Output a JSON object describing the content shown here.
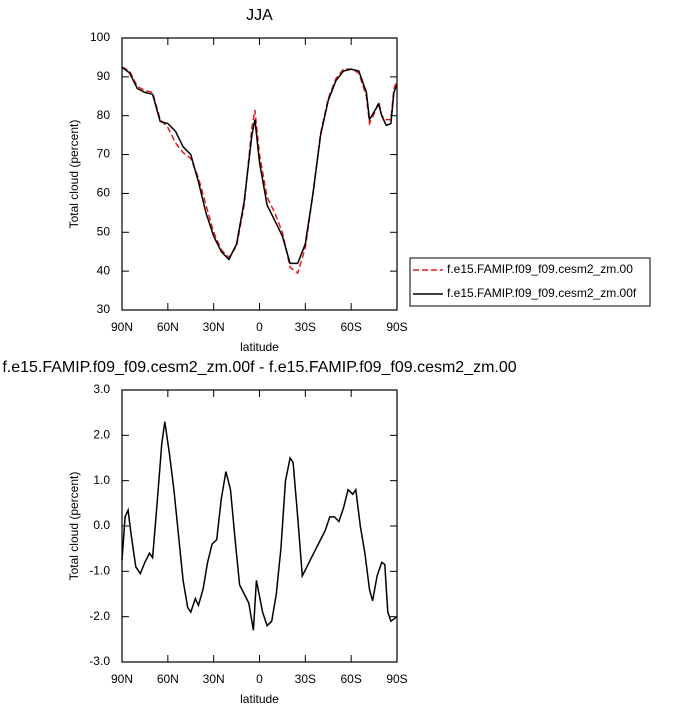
{
  "chart_data": [
    {
      "type": "line",
      "title": "JJA",
      "xlabel": "latitude",
      "ylabel": "Total cloud (percent)",
      "x": [
        90,
        85,
        80,
        75,
        70,
        65,
        60,
        55,
        50,
        45,
        40,
        35,
        30,
        25,
        20,
        15,
        10,
        5,
        3,
        0,
        -5,
        -10,
        -15,
        -20,
        -25,
        -30,
        -35,
        -40,
        -45,
        -50,
        -55,
        -60,
        -65,
        -70,
        -72,
        -75,
        -78,
        -80,
        -83,
        -86,
        -88,
        -90
      ],
      "xlim": [
        90,
        -90
      ],
      "xticks": [
        {
          "value": 90,
          "label": "90N"
        },
        {
          "value": 60,
          "label": "60N"
        },
        {
          "value": 30,
          "label": "30N"
        },
        0,
        {
          "value": -30,
          "label": "30S"
        },
        {
          "value": -60,
          "label": "60S"
        },
        {
          "value": -90,
          "label": "90S"
        }
      ],
      "ylim": [
        30,
        100
      ],
      "yticks": [
        30,
        40,
        50,
        60,
        70,
        80,
        90,
        100
      ],
      "legend": "right",
      "series": [
        {
          "name": "f.e15.FAMIP.f09_f09.cesm2_zm.00",
          "color": "#e41a1c",
          "dash": "dashed",
          "values": [
            92.5,
            91.5,
            87.5,
            86.5,
            86,
            79,
            77,
            73,
            70.5,
            69,
            64,
            57,
            50,
            45.5,
            43.5,
            46.5,
            57,
            77,
            81.5,
            70,
            59,
            55,
            50,
            41,
            39.5,
            46,
            60,
            75.5,
            84.5,
            89.5,
            92,
            92,
            91,
            85,
            78,
            80.5,
            83.5,
            80,
            79,
            79,
            87,
            89
          ]
        },
        {
          "name": "f.e15.FAMIP.f09_f09.cesm2_zm.00f",
          "color": "#000000",
          "dash": "solid",
          "values": [
            92.5,
            91,
            87,
            86,
            85.5,
            78.5,
            78,
            76,
            72,
            70,
            63,
            55,
            49,
            45,
            43,
            47,
            58,
            75,
            79,
            68,
            57,
            53,
            49,
            42,
            42,
            47,
            60,
            75,
            84,
            89,
            91.5,
            92,
            91.5,
            86,
            79,
            81,
            83,
            80,
            77.5,
            78,
            86,
            88
          ]
        }
      ]
    },
    {
      "type": "line",
      "title": "f.e15.FAMIP.f09_f09.cesm2_zm.00f - f.e15.FAMIP.f09_f09.cesm2_zm.00",
      "xlabel": "latitude",
      "ylabel": "Total cloud (percent)",
      "x": [
        90,
        88,
        86,
        84,
        81,
        78,
        75,
        72,
        70,
        67,
        64,
        62,
        59,
        56,
        53,
        50,
        47,
        45,
        42,
        40,
        37,
        34,
        31,
        28,
        25,
        22,
        19,
        16,
        13,
        10,
        7,
        4,
        2,
        -2,
        -5,
        -8,
        -11,
        -14,
        -17,
        -20,
        -22,
        -25,
        -28,
        -31,
        -34,
        -37,
        -40,
        -43,
        -46,
        -49,
        -52,
        -55,
        -58,
        -61,
        -63,
        -66,
        -69,
        -72,
        -74,
        -77,
        -80,
        -82,
        -84,
        -86,
        -90
      ],
      "xlim": [
        90,
        -90
      ],
      "xticks": [
        {
          "value": 90,
          "label": "90N"
        },
        {
          "value": 60,
          "label": "60N"
        },
        {
          "value": 30,
          "label": "30N"
        },
        0,
        {
          "value": -30,
          "label": "30S"
        },
        {
          "value": -60,
          "label": "60S"
        },
        {
          "value": -90,
          "label": "90S"
        }
      ],
      "ylim": [
        -3,
        3
      ],
      "yticks": [
        {
          "value": -3,
          "label": "-3.0"
        },
        {
          "value": -2,
          "label": "-2.0"
        },
        {
          "value": -1,
          "label": "-1.0"
        },
        {
          "value": 0,
          "label": "0.0"
        },
        {
          "value": 1,
          "label": "1.0"
        },
        {
          "value": 2,
          "label": "2.0"
        },
        {
          "value": 3,
          "label": "3.0"
        }
      ],
      "series": [
        {
          "color": "#000000",
          "dash": "solid",
          "values": [
            -0.75,
            0.2,
            0.35,
            -0.2,
            -0.9,
            -1.05,
            -0.8,
            -0.6,
            -0.7,
            0.5,
            1.8,
            2.3,
            1.6,
            0.8,
            -0.2,
            -1.2,
            -1.8,
            -1.9,
            -1.6,
            -1.75,
            -1.4,
            -0.8,
            -0.4,
            -0.3,
            0.6,
            1.2,
            0.8,
            -0.3,
            -1.3,
            -1.5,
            -1.7,
            -2.3,
            -1.2,
            -1.9,
            -2.2,
            -2.1,
            -1.5,
            -0.5,
            1.0,
            1.5,
            1.4,
            0.2,
            -1.1,
            -0.9,
            -0.7,
            -0.5,
            -0.3,
            -0.1,
            0.2,
            0.2,
            0.1,
            0.4,
            0.8,
            0.7,
            0.8,
            0.0,
            -0.6,
            -1.4,
            -1.65,
            -1.1,
            -0.8,
            -0.85,
            -1.9,
            -2.1,
            -2.0
          ]
        }
      ]
    }
  ]
}
